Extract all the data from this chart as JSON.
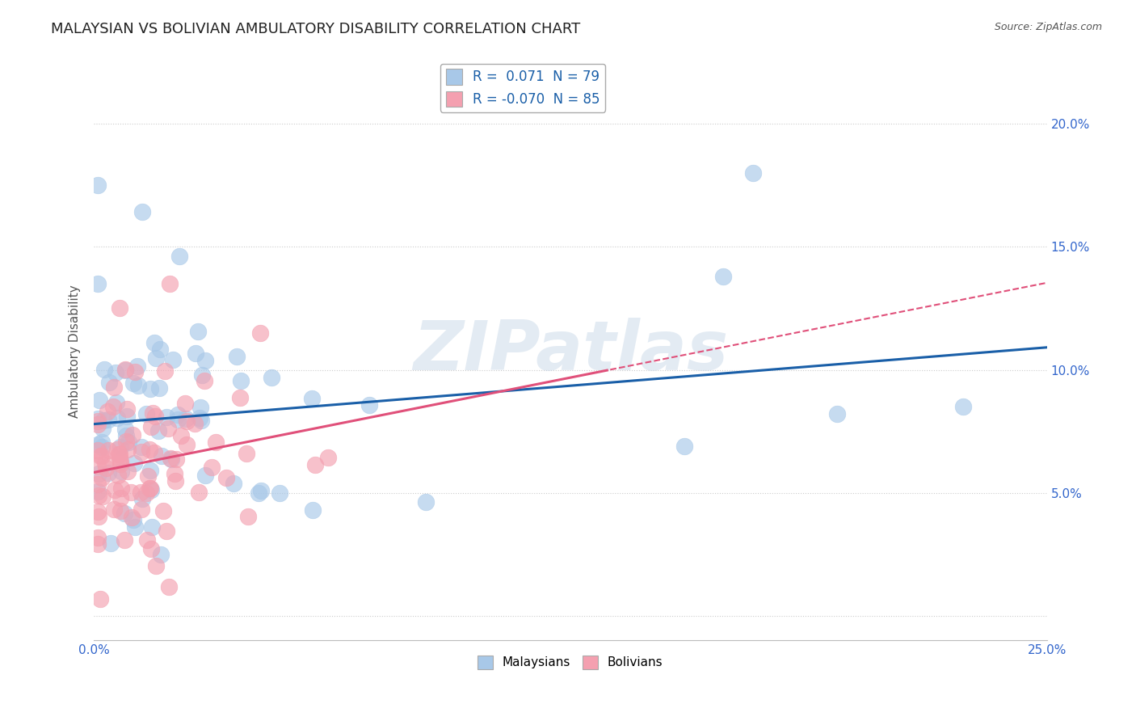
{
  "title": "MALAYSIAN VS BOLIVIAN AMBULATORY DISABILITY CORRELATION CHART",
  "source": "Source: ZipAtlas.com",
  "ylabel": "Ambulatory Disability",
  "xlim": [
    0.0,
    0.25
  ],
  "ylim": [
    -0.01,
    0.225
  ],
  "yticks": [
    0.0,
    0.05,
    0.1,
    0.15,
    0.2
  ],
  "yticklabels_right": [
    "",
    "5.0%",
    "10.0%",
    "15.0%",
    "20.0%"
  ],
  "xtick_left_label": "0.0%",
  "xtick_right_label": "25.0%",
  "legend1_label": "R =  0.071  N = 79",
  "legend2_label": "R = -0.070  N = 85",
  "R_malaysian": 0.071,
  "N_malaysian": 79,
  "R_bolivian": -0.07,
  "N_bolivian": 85,
  "color_malaysian": "#a8c8e8",
  "color_bolivian": "#f4a0b0",
  "trendline_color_malaysian": "#1a5fa8",
  "trendline_color_bolivian": "#e0507a",
  "background_color": "#ffffff",
  "grid_color": "#cccccc",
  "title_fontsize": 13,
  "axis_label_fontsize": 11,
  "tick_fontsize": 11,
  "legend_text_color": "#1a5fa8",
  "watermark_text": "ZIPatlas",
  "seed": 1234
}
